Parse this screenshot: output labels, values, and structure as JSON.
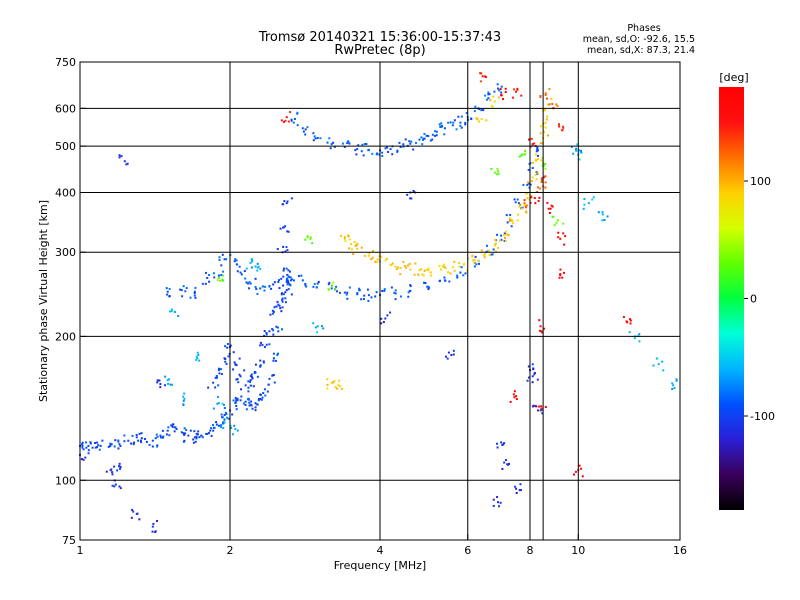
{
  "chart_data": {
    "type": "scatter",
    "title": "Tromsø 20140321 15:36:00-15:37:43",
    "subtitle": "RwPretec (8p)",
    "xlabel": "Frequency [MHz]",
    "ylabel": "Stationary phase Virtual Height [km]",
    "x_scale": "log",
    "y_scale": "log",
    "xlim": [
      1,
      16
    ],
    "ylim": [
      75,
      750
    ],
    "x_ticks": [
      1,
      2,
      4,
      6,
      8,
      10,
      16
    ],
    "x_gridlines": [
      2,
      4,
      6,
      8,
      8.5,
      10
    ],
    "y_ticks": [
      75,
      100,
      200,
      300,
      400,
      500,
      600,
      750
    ],
    "y_gridlines": [
      100,
      200,
      300,
      400,
      500,
      600
    ],
    "grid": true,
    "phase_info": {
      "heading": "Phases",
      "line1": "mean, sd,O: -92.6, 15.5",
      "line2": "mean, sd,X: 87.3, 21.4"
    },
    "colorbar": {
      "label": "[deg]",
      "range": [
        -180,
        180
      ],
      "ticks": [
        100,
        0,
        -100
      ],
      "colors": [
        "#000000",
        "#3a005a",
        "#2b1fd6",
        "#0050ff",
        "#00b4ff",
        "#00ffd8",
        "#00ff40",
        "#60ff00",
        "#d4ff00",
        "#ffd000",
        "#ff7000",
        "#ff1010",
        "#ff0000"
      ]
    },
    "series": [
      {
        "phase": -95,
        "points": [
          [
            1.0,
            118
          ],
          [
            1.03,
            117
          ],
          [
            1.06,
            117
          ],
          [
            1.1,
            118
          ],
          [
            1.15,
            118
          ],
          [
            1.2,
            119
          ],
          [
            1.25,
            121
          ],
          [
            1.3,
            123
          ],
          [
            1.35,
            122
          ],
          [
            1.4,
            121
          ],
          [
            1.45,
            124
          ],
          [
            1.5,
            127
          ],
          [
            1.55,
            129
          ],
          [
            1.6,
            126
          ],
          [
            1.65,
            124
          ],
          [
            1.7,
            123
          ],
          [
            1.75,
            124
          ],
          [
            1.8,
            125
          ],
          [
            1.85,
            127
          ],
          [
            1.9,
            130
          ],
          [
            1.95,
            134
          ],
          [
            2.0,
            140
          ],
          [
            2.05,
            145
          ],
          [
            2.1,
            147
          ],
          [
            2.15,
            146
          ],
          [
            2.2,
            144
          ],
          [
            2.25,
            145
          ],
          [
            2.3,
            148
          ],
          [
            2.35,
            155
          ],
          [
            2.4,
            163
          ],
          [
            2.45,
            180
          ],
          [
            2.5,
            205
          ],
          [
            2.55,
            240
          ],
          [
            2.6,
            260
          ],
          [
            2.62,
            275
          ],
          [
            2.65,
            262
          ]
        ]
      },
      {
        "phase": -100,
        "points": [
          [
            1.85,
            160
          ],
          [
            1.9,
            170
          ],
          [
            1.95,
            180
          ],
          [
            2.0,
            190
          ],
          [
            2.05,
            175
          ],
          [
            2.1,
            165
          ],
          [
            2.15,
            158
          ],
          [
            2.2,
            162
          ],
          [
            2.25,
            168
          ],
          [
            2.3,
            178
          ],
          [
            2.35,
            190
          ],
          [
            2.4,
            205
          ],
          [
            2.45,
            225
          ],
          [
            2.5,
            260
          ],
          [
            2.55,
            300
          ],
          [
            2.58,
            340
          ],
          [
            2.6,
            380
          ],
          [
            2.55,
            230
          ],
          [
            2.6,
            250
          ]
        ]
      },
      {
        "phase": -90,
        "points": [
          [
            1.5,
            248
          ],
          [
            1.6,
            250
          ],
          [
            1.7,
            248
          ],
          [
            1.8,
            265
          ],
          [
            1.9,
            268
          ],
          [
            1.95,
            290
          ],
          [
            2.05,
            290
          ],
          [
            2.1,
            272
          ],
          [
            2.2,
            258
          ],
          [
            2.3,
            252
          ],
          [
            2.4,
            255
          ],
          [
            2.6,
            262
          ],
          [
            2.8,
            262
          ],
          [
            3.0,
            258
          ],
          [
            3.2,
            252
          ],
          [
            3.4,
            247
          ],
          [
            3.6,
            245
          ],
          [
            3.8,
            244
          ],
          [
            4.0,
            244
          ],
          [
            4.3,
            246
          ],
          [
            4.6,
            249
          ],
          [
            5.0,
            254
          ],
          [
            5.4,
            262
          ],
          [
            5.8,
            272
          ],
          [
            6.2,
            285
          ],
          [
            6.6,
            302
          ],
          [
            7.0,
            325
          ],
          [
            7.3,
            350
          ],
          [
            7.6,
            380
          ],
          [
            7.9,
            415
          ],
          [
            8.1,
            450
          ],
          [
            8.3,
            490
          ]
        ]
      },
      {
        "phase": -88,
        "points": [
          [
            2.7,
            570
          ],
          [
            2.8,
            545
          ],
          [
            3.0,
            520
          ],
          [
            3.2,
            505
          ],
          [
            3.4,
            498
          ],
          [
            3.6,
            493
          ],
          [
            3.8,
            491
          ],
          [
            4.0,
            490
          ],
          [
            4.2,
            493
          ],
          [
            4.4,
            498
          ],
          [
            4.6,
            506
          ],
          [
            4.8,
            516
          ],
          [
            5.0,
            525
          ],
          [
            5.2,
            536
          ],
          [
            5.4,
            545
          ],
          [
            5.6,
            553
          ],
          [
            5.8,
            560
          ],
          [
            6.0,
            575
          ],
          [
            6.3,
            600
          ],
          [
            6.6,
            630
          ],
          [
            6.9,
            660
          ]
        ]
      },
      {
        "phase": 90,
        "points": [
          [
            3.4,
            320
          ],
          [
            3.5,
            312
          ],
          [
            3.6,
            305
          ],
          [
            3.8,
            295
          ],
          [
            4.0,
            287
          ],
          [
            4.2,
            282
          ],
          [
            4.4,
            278
          ],
          [
            4.6,
            276
          ],
          [
            4.8,
            275
          ],
          [
            5.0,
            275
          ],
          [
            5.3,
            276
          ],
          [
            5.6,
            279
          ],
          [
            5.9,
            283
          ],
          [
            6.2,
            289
          ],
          [
            6.5,
            297
          ],
          [
            6.8,
            310
          ],
          [
            7.1,
            326
          ],
          [
            7.4,
            345
          ],
          [
            7.7,
            370
          ],
          [
            7.9,
            398
          ],
          [
            8.1,
            430
          ],
          [
            8.3,
            470
          ],
          [
            8.5,
            520
          ],
          [
            8.6,
            560
          ],
          [
            8.7,
            610
          ],
          [
            6.4,
            570
          ],
          [
            6.8,
            620
          ],
          [
            3.2,
            160
          ],
          [
            3.3,
            158
          ]
        ]
      },
      {
        "phase": 125,
        "points": [
          [
            8.6,
            640
          ],
          [
            8.9,
            600
          ],
          [
            8.3,
            410
          ],
          [
            7.8,
            380
          ],
          [
            8.6,
            420
          ]
        ]
      },
      {
        "phase": 150,
        "points": [
          [
            2.6,
            575
          ],
          [
            7.5,
            650
          ],
          [
            6.5,
            700
          ],
          [
            8.1,
            505
          ],
          [
            9.3,
            540
          ]
        ]
      },
      {
        "phase": 30,
        "points": [
          [
            7.8,
            480
          ],
          [
            8.5,
            460
          ],
          [
            2.9,
            320
          ],
          [
            1.9,
            265
          ],
          [
            9.1,
            350
          ],
          [
            3.2,
            255
          ],
          [
            6.8,
            440
          ]
        ]
      },
      {
        "phase": 175,
        "points": [
          [
            7.0,
            640
          ],
          [
            8.2,
            380
          ],
          [
            8.8,
            370
          ],
          [
            9.2,
            320
          ],
          [
            9.2,
            270
          ],
          [
            10.0,
            105
          ],
          [
            12.5,
            215
          ],
          [
            8.4,
            140
          ],
          [
            7.5,
            150
          ],
          [
            8.4,
            210
          ]
        ]
      },
      {
        "phase": -60,
        "points": [
          [
            1.5,
            162
          ],
          [
            1.62,
            148
          ],
          [
            1.72,
            180
          ],
          [
            1.9,
            145
          ],
          [
            1.95,
            132
          ],
          [
            2.05,
            128
          ],
          [
            3.0,
            210
          ],
          [
            2.2,
            285
          ],
          [
            2.25,
            280
          ],
          [
            1.55,
            225
          ],
          [
            14.5,
            175
          ],
          [
            15.5,
            158
          ],
          [
            13.0,
            200
          ],
          [
            10.5,
            380
          ],
          [
            11.2,
            360
          ],
          [
            10.0,
            480
          ],
          [
            9.9,
            490
          ]
        ]
      },
      {
        "phase": -110,
        "points": [
          [
            1.3,
            85
          ],
          [
            1.18,
            98
          ],
          [
            1.16,
            104
          ],
          [
            1.2,
            107
          ],
          [
            1.4,
            80
          ],
          [
            1.23,
            465
          ],
          [
            1.0,
            113
          ],
          [
            1.45,
            159
          ],
          [
            7.0,
            120
          ],
          [
            7.2,
            108
          ],
          [
            8.0,
            170
          ],
          [
            8.1,
            165
          ],
          [
            8.3,
            140
          ],
          [
            5.5,
            185
          ],
          [
            4.6,
            400
          ],
          [
            4.1,
            218
          ],
          [
            6.9,
            90
          ],
          [
            7.5,
            96
          ]
        ]
      }
    ]
  }
}
